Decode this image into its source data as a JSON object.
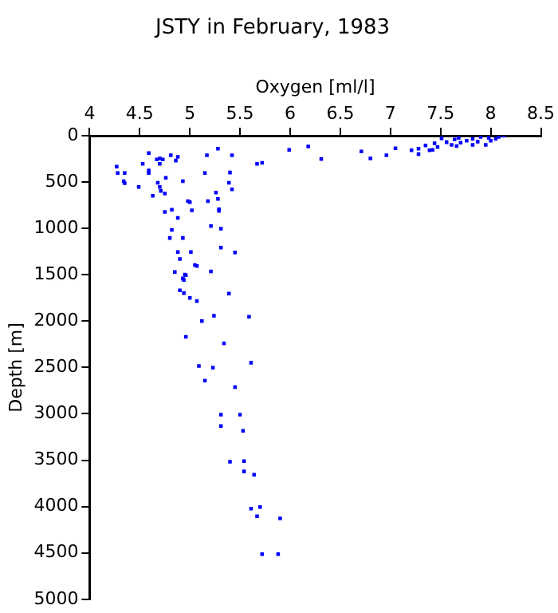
{
  "chart_data": {
    "type": "scatter",
    "title": "JSTY in February, 1983",
    "xlabel": "Oxygen [ml/l]",
    "ylabel": "Depth [m]",
    "marker": "square",
    "xlim": [
      4,
      8.5
    ],
    "xticks": [
      4,
      4.5,
      5,
      5.5,
      6,
      6.5,
      7,
      7.5,
      8,
      8.5
    ],
    "ylim": [
      5000,
      0
    ],
    "yticks": [
      0,
      500,
      1000,
      1500,
      2000,
      2500,
      3000,
      3500,
      4000,
      4500,
      5000
    ],
    "series": [
      {
        "color": "#0000ff",
        "x": [
          4.27,
          4.28,
          4.35,
          4.34,
          4.35,
          4.49,
          4.59,
          4.53,
          4.59,
          4.59,
          4.67,
          4.7,
          4.73,
          4.7,
          4.68,
          4.7,
          4.71,
          4.63,
          4.75,
          4.76,
          4.81,
          4.88,
          4.86,
          4.93,
          4.98,
          5.0,
          5.02,
          4.75,
          4.82,
          4.88,
          4.82,
          4.8,
          4.93,
          4.88,
          4.9,
          5.01,
          5.05,
          4.85,
          4.95,
          4.93,
          5.17,
          5.15,
          5.18,
          5.26,
          5.28,
          5.29,
          5.29,
          5.21,
          5.31,
          5.31,
          5.45,
          5.21,
          5.28,
          5.42,
          5.4,
          5.39,
          5.42,
          5.67,
          5.72,
          5.99,
          6.18,
          6.31,
          6.71,
          6.8,
          6.96,
          7.05,
          7.21,
          7.28,
          7.28,
          7.35,
          7.39,
          7.42,
          7.44,
          7.47,
          7.56,
          7.61,
          7.64,
          7.66,
          7.68,
          7.76,
          7.82,
          7.87,
          7.95,
          7.98,
          8.0,
          8.05,
          8.08,
          8.13,
          7.51,
          7.7,
          7.82,
          7.9,
          5.07,
          4.96,
          4.94,
          4.9,
          4.94,
          5.0,
          5.07,
          5.39,
          5.24,
          5.12,
          5.59,
          4.96,
          5.34,
          5.09,
          5.23,
          5.61,
          5.15,
          5.45,
          5.31,
          5.5,
          5.31,
          5.53,
          5.4,
          5.54,
          5.54,
          5.64,
          5.61,
          5.7,
          5.67,
          5.9,
          5.72,
          5.88
        ],
        "values": [
          333,
          403,
          403,
          490,
          513,
          554,
          187,
          304,
          374,
          403,
          257,
          245,
          257,
          304,
          508,
          554,
          595,
          647,
          624,
          455,
          210,
          228,
          268,
          490,
          705,
          717,
          805,
          822,
          799,
          886,
          1015,
          1103,
          1103,
          1254,
          1330,
          1254,
          1394,
          1470,
          1499,
          1540,
          210,
          403,
          705,
          613,
          682,
          793,
          811,
          974,
          1003,
          1207,
          1260,
          1464,
          140,
          210,
          397,
          508,
          578,
          304,
          292,
          152,
          117,
          251,
          170,
          245,
          210,
          135,
          158,
          140,
          199,
          105,
          158,
          152,
          82,
          123,
          70,
          99,
          41,
          111,
          24,
          53,
          35,
          64,
          99,
          24,
          53,
          35,
          12,
          0,
          29,
          76,
          99,
          12,
          1406,
          1505,
          1557,
          1668,
          1697,
          1750,
          1785,
          1703,
          1942,
          2000,
          1953,
          2170,
          2240,
          2484,
          2502,
          2449,
          2642,
          2712,
          3009,
          3009,
          3132,
          3184,
          3516,
          3510,
          3621,
          3656,
          4023,
          4006,
          4105,
          4128,
          4513,
          4513
        ]
      }
    ]
  }
}
